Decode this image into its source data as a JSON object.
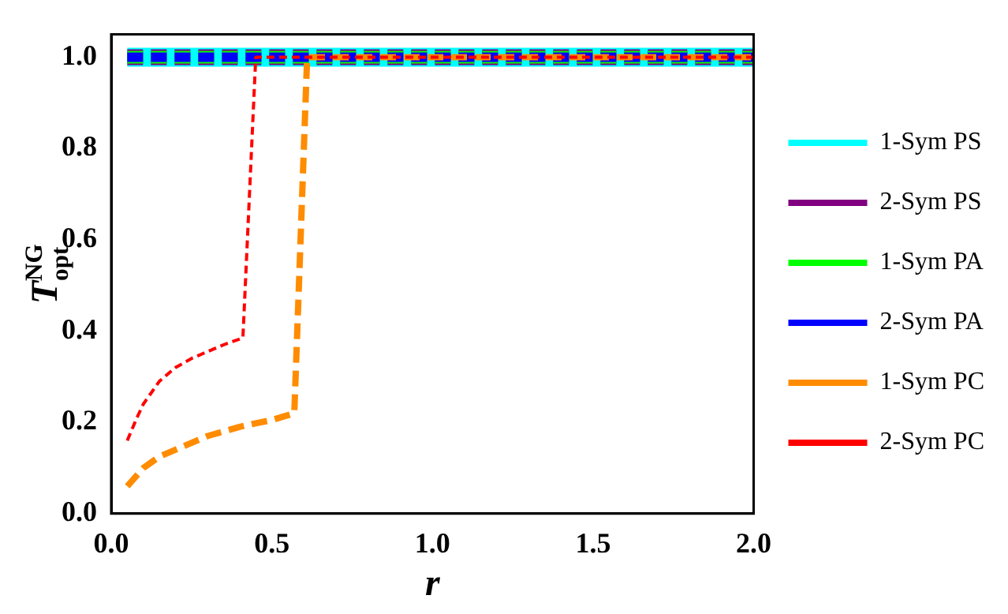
{
  "chart_data": {
    "type": "line",
    "xlabel": "r",
    "ylabel": "T$_{opt}$$^{NG}$",
    "xlim": [
      0,
      2
    ],
    "ylim": [
      0,
      1.05
    ],
    "xticks": [
      {
        "value": 0,
        "label": "0.0"
      },
      0.5,
      {
        "value": 1,
        "label": "1.0"
      },
      1.5,
      {
        "value": 2,
        "label": "2.0"
      }
    ],
    "yticks": [
      {
        "value": 0,
        "label": "0.0"
      },
      0.2,
      0.4,
      0.6,
      0.8,
      {
        "value": 1,
        "label": "1.0"
      }
    ],
    "grid": false,
    "legend": "right",
    "marker": "none",
    "series": [
      {
        "name": "1-Sym PS",
        "color": "#00ffff",
        "line_style": "solid",
        "x": [
          0.05,
          2
        ],
        "values": [
          1,
          1
        ]
      },
      {
        "name": "2-Sym PS",
        "color": "#800080",
        "line_style": "dashed",
        "x": [
          0.05,
          2
        ],
        "values": [
          1,
          1
        ]
      },
      {
        "name": "1-Sym PA",
        "color": "#00ff00",
        "line_style": "dashed",
        "x": [
          0.05,
          2
        ],
        "values": [
          1,
          1
        ]
      },
      {
        "name": "2-Sym PA",
        "color": "#0000ff",
        "line_style": "dashed",
        "x": [
          0.05,
          2
        ],
        "values": [
          1,
          1
        ]
      },
      {
        "name": "1-Sym PC",
        "color": "#ff8c00",
        "line_style": "dashed",
        "x": [
          0.05,
          0.1,
          0.15,
          0.2,
          0.25,
          0.3,
          0.35,
          0.4,
          0.45,
          0.5,
          0.57,
          0.61,
          1,
          1.5,
          2
        ],
        "values": [
          0.06,
          0.1,
          0.125,
          0.14,
          0.155,
          0.17,
          0.18,
          0.19,
          0.198,
          0.205,
          0.22,
          1,
          1,
          1,
          1
        ]
      },
      {
        "name": "2-Sym PC",
        "color": "#ff0000",
        "line_style": "dotted",
        "x": [
          0.05,
          0.08,
          0.1,
          0.15,
          0.2,
          0.25,
          0.3,
          0.35,
          0.41,
          0.45,
          1,
          1.5,
          2
        ],
        "values": [
          0.16,
          0.21,
          0.24,
          0.29,
          0.32,
          0.34,
          0.355,
          0.37,
          0.385,
          1,
          1,
          1,
          1
        ]
      }
    ]
  }
}
